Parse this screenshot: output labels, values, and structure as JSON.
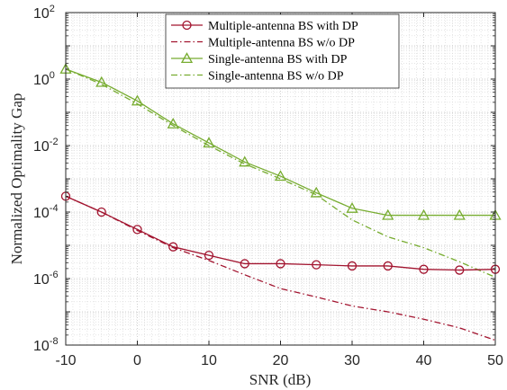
{
  "chart_data": {
    "type": "line",
    "xlabel": "SNR (dB)",
    "ylabel": "Normalized Optimality Gap",
    "xlim": [
      -10,
      50
    ],
    "ylim": [
      1e-08,
      100
    ],
    "yscale": "log",
    "grid": true,
    "minor_grid": true,
    "legend_position": "top-center",
    "x_ticks": [
      -10,
      0,
      10,
      20,
      30,
      40,
      50
    ],
    "x_tick_labels": [
      "-10",
      "0",
      "10",
      "20",
      "30",
      "40",
      "50"
    ],
    "y_ticks": [
      1e-08,
      1e-06,
      0.0001,
      0.01,
      1,
      100
    ],
    "y_tick_labels": [
      {
        "base": "10",
        "exp": "-8"
      },
      {
        "base": "10",
        "exp": "-6"
      },
      {
        "base": "10",
        "exp": "-4"
      },
      {
        "base": "10",
        "exp": "-2"
      },
      {
        "base": "10",
        "exp": "0"
      },
      {
        "base": "10",
        "exp": "2"
      }
    ],
    "series": [
      {
        "name": "Multiple-antenna BS with DP",
        "color": "#A2142F",
        "line": "solid",
        "marker": "circle",
        "x": [
          -10,
          -5,
          0,
          5,
          10,
          15,
          20,
          25,
          30,
          35,
          40,
          45,
          50
        ],
        "y": [
          0.0003,
          0.0001,
          3e-05,
          9e-06,
          5e-06,
          2.8e-06,
          2.8e-06,
          2.6e-06,
          2.4e-06,
          2.4e-06,
          1.9e-06,
          1.8e-06,
          1.9e-06
        ]
      },
      {
        "name": "Multiple-antenna BS w/o DP",
        "color": "#A2142F",
        "line": "dashdot",
        "marker": "none",
        "x": [
          -10,
          -5,
          0,
          5,
          10,
          15,
          20,
          25,
          30,
          35,
          40,
          45,
          50
        ],
        "y": [
          0.0003,
          0.0001,
          2.8e-05,
          8.5e-06,
          3.5e-06,
          1.3e-06,
          5e-07,
          2.8e-07,
          1.5e-07,
          1e-07,
          6e-08,
          3.3e-08,
          1.4e-08
        ]
      },
      {
        "name": "Single-antenna BS with DP",
        "color": "#77AC30",
        "line": "solid",
        "marker": "triangle",
        "x": [
          -10,
          -5,
          0,
          5,
          10,
          15,
          20,
          25,
          30,
          35,
          40,
          45,
          50
        ],
        "y": [
          2.0,
          0.8,
          0.22,
          0.045,
          0.012,
          0.0032,
          0.0012,
          0.00038,
          0.00013,
          8e-05,
          8e-05,
          8e-05,
          8e-05
        ]
      },
      {
        "name": "Single-antenna BS w/o DP",
        "color": "#77AC30",
        "line": "dashdot",
        "marker": "none",
        "x": [
          -10,
          -5,
          0,
          5,
          10,
          15,
          20,
          25,
          30,
          35,
          40,
          45,
          50
        ],
        "y": [
          2.0,
          0.7,
          0.18,
          0.04,
          0.01,
          0.0028,
          0.001,
          0.00033,
          5.8e-05,
          1.8e-05,
          8.5e-06,
          3.2e-06,
          1.1e-06
        ]
      }
    ]
  }
}
